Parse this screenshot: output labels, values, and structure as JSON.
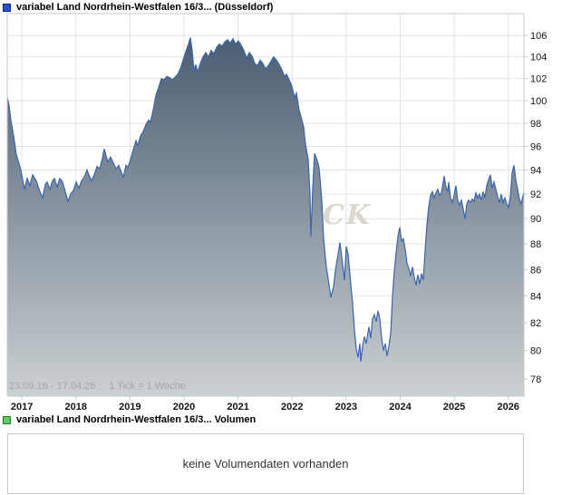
{
  "price_panel": {
    "legend": {
      "label": "variabel Land Nordrhein-Westfalen 16/3... (Düsseldorf)",
      "swatch_color": "#2852c8",
      "swatch_border": "#0a1f96"
    },
    "footer": {
      "date_range": "23.09.16 - 17.04.26",
      "tick_info": "1 Tick = 1 Woche"
    },
    "watermark": "CK"
  },
  "volume_panel": {
    "legend": {
      "label": "variabel Land Nordrhein-Westfalen 16/3... Volumen",
      "swatch_color": "#64c864",
      "swatch_border": "#1e7d1e"
    },
    "message": "keine Volumendaten vorhanden"
  },
  "colors": {
    "grid": "#e3e3e3",
    "plot_border": "#c9c9c9",
    "axis_text": "#141414",
    "muted_text": "#a6a6a6",
    "watermark_color": "#dcd8cd",
    "line": "#3a65ac"
  },
  "chart_data": {
    "type": "area",
    "title": "variabel Land Nordrhein-Westfalen 16/3... (Düsseldorf)",
    "grid": true,
    "legend_position": "top-left",
    "x_axis": {
      "tick_labels": [
        "2017",
        "2018",
        "2019",
        "2020",
        "2021",
        "2022",
        "2023",
        "2024",
        "2025",
        "2026"
      ],
      "tick_years": [
        2017,
        2018,
        2019,
        2020,
        2021,
        2022,
        2023,
        2024,
        2025,
        2026
      ],
      "start_decimal_year": 2016.73,
      "end_decimal_year": 2026.29,
      "start_date": "23.09.16",
      "end_date": "17.04.26",
      "tick_unit": "1 Tick = 1 Woche"
    },
    "y_axis": {
      "scale": "log",
      "side": "right",
      "ticks": [
        78,
        80,
        82,
        84,
        86,
        88,
        90,
        92,
        94,
        96,
        98,
        100,
        102,
        104,
        106
      ],
      "ylim": [
        76.8,
        108.1
      ]
    },
    "series": [
      {
        "name": "variabel Land Nordrhein-Westfalen 16/3... (Düsseldorf)",
        "color": "#3a65ac",
        "fill_gradient": [
          "#42566b",
          "#cbd0d2"
        ],
        "points": [
          [
            0.0,
            100.3
          ],
          [
            0.0035,
            99.6
          ],
          [
            0.007,
            98.3
          ],
          [
            0.0123,
            96.9
          ],
          [
            0.0175,
            95.3
          ],
          [
            0.0211,
            94.8
          ],
          [
            0.0263,
            94.0
          ],
          [
            0.0333,
            92.4
          ],
          [
            0.0386,
            93.3
          ],
          [
            0.0439,
            92.7
          ],
          [
            0.0491,
            93.6
          ],
          [
            0.0561,
            93.1
          ],
          [
            0.0632,
            92.2
          ],
          [
            0.0684,
            91.7
          ],
          [
            0.0737,
            92.8
          ],
          [
            0.0772,
            93.0
          ],
          [
            0.0825,
            92.4
          ],
          [
            0.0877,
            93.1
          ],
          [
            0.0912,
            93.3
          ],
          [
            0.0965,
            92.6
          ],
          [
            0.1018,
            93.3
          ],
          [
            0.107,
            93.0
          ],
          [
            0.1123,
            92.2
          ],
          [
            0.1175,
            91.4
          ],
          [
            0.1228,
            92.0
          ],
          [
            0.1281,
            92.3
          ],
          [
            0.1333,
            93.0
          ],
          [
            0.1386,
            92.5
          ],
          [
            0.1439,
            93.1
          ],
          [
            0.1491,
            93.4
          ],
          [
            0.1544,
            94.0
          ],
          [
            0.1579,
            93.6
          ],
          [
            0.1632,
            93.1
          ],
          [
            0.1684,
            93.6
          ],
          [
            0.1737,
            94.3
          ],
          [
            0.1789,
            94.1
          ],
          [
            0.1842,
            95.0
          ],
          [
            0.1877,
            95.8
          ],
          [
            0.1912,
            95.2
          ],
          [
            0.1947,
            94.7
          ],
          [
            0.2,
            95.1
          ],
          [
            0.2053,
            94.6
          ],
          [
            0.2105,
            94.1
          ],
          [
            0.2158,
            94.4
          ],
          [
            0.2211,
            93.8
          ],
          [
            0.2246,
            93.4
          ],
          [
            0.2298,
            94.4
          ],
          [
            0.2333,
            94.2
          ],
          [
            0.2386,
            94.9
          ],
          [
            0.2439,
            95.7
          ],
          [
            0.2491,
            96.5
          ],
          [
            0.2526,
            96.1
          ],
          [
            0.2579,
            96.9
          ],
          [
            0.2632,
            97.3
          ],
          [
            0.2684,
            97.9
          ],
          [
            0.2737,
            98.3
          ],
          [
            0.2772,
            98.1
          ],
          [
            0.2825,
            99.2
          ],
          [
            0.2877,
            100.5
          ],
          [
            0.293,
            101.2
          ],
          [
            0.2982,
            102.0
          ],
          [
            0.3035,
            101.9
          ],
          [
            0.3088,
            102.2
          ],
          [
            0.314,
            102.1
          ],
          [
            0.3193,
            101.9
          ],
          [
            0.3246,
            102.1
          ],
          [
            0.3298,
            102.4
          ],
          [
            0.3351,
            102.9
          ],
          [
            0.3404,
            103.7
          ],
          [
            0.3456,
            104.5
          ],
          [
            0.3509,
            105.2
          ],
          [
            0.3544,
            105.8
          ],
          [
            0.3579,
            104.6
          ],
          [
            0.3614,
            102.7
          ],
          [
            0.3649,
            103.3
          ],
          [
            0.3684,
            102.6
          ],
          [
            0.3737,
            103.4
          ],
          [
            0.3789,
            104.0
          ],
          [
            0.3842,
            104.4
          ],
          [
            0.3895,
            104.0
          ],
          [
            0.3947,
            104.6
          ],
          [
            0.4,
            104.3
          ],
          [
            0.4053,
            104.9
          ],
          [
            0.4105,
            105.2
          ],
          [
            0.4158,
            105.0
          ],
          [
            0.4211,
            105.4
          ],
          [
            0.4263,
            105.6
          ],
          [
            0.4316,
            105.3
          ],
          [
            0.4368,
            105.7
          ],
          [
            0.4421,
            105.2
          ],
          [
            0.4474,
            105.5
          ],
          [
            0.4526,
            105.1
          ],
          [
            0.4579,
            104.6
          ],
          [
            0.4632,
            103.9
          ],
          [
            0.4684,
            104.4
          ],
          [
            0.4737,
            104.1
          ],
          [
            0.4789,
            103.4
          ],
          [
            0.4842,
            103.2
          ],
          [
            0.4895,
            103.7
          ],
          [
            0.4947,
            103.4
          ],
          [
            0.5,
            102.9
          ],
          [
            0.5053,
            103.2
          ],
          [
            0.5105,
            103.6
          ],
          [
            0.5158,
            104.0
          ],
          [
            0.5211,
            103.7
          ],
          [
            0.5263,
            103.3
          ],
          [
            0.5316,
            102.8
          ],
          [
            0.5368,
            102.2
          ],
          [
            0.5404,
            102.4
          ],
          [
            0.5456,
            101.9
          ],
          [
            0.5509,
            101.3
          ],
          [
            0.5561,
            100.3
          ],
          [
            0.5596,
            100.7
          ],
          [
            0.5649,
            99.2
          ],
          [
            0.5702,
            98.3
          ],
          [
            0.5737,
            97.7
          ],
          [
            0.5772,
            96.2
          ],
          [
            0.5825,
            94.9
          ],
          [
            0.586,
            92.0
          ],
          [
            0.5877,
            88.6
          ],
          [
            0.5912,
            92.5
          ],
          [
            0.5947,
            95.4
          ],
          [
            0.6,
            94.8
          ],
          [
            0.6035,
            94.2
          ],
          [
            0.6088,
            91.5
          ],
          [
            0.6123,
            88.4
          ],
          [
            0.6175,
            86.2
          ],
          [
            0.6211,
            85.3
          ],
          [
            0.6263,
            83.9
          ],
          [
            0.6316,
            84.7
          ],
          [
            0.6351,
            85.9
          ],
          [
            0.6404,
            87.2
          ],
          [
            0.6439,
            88.1
          ],
          [
            0.6474,
            87.0
          ],
          [
            0.6526,
            85.2
          ],
          [
            0.6561,
            87.8
          ],
          [
            0.6596,
            87.2
          ],
          [
            0.6649,
            84.9
          ],
          [
            0.6684,
            83.4
          ],
          [
            0.6719,
            81.5
          ],
          [
            0.6754,
            80.1
          ],
          [
            0.6789,
            79.5
          ],
          [
            0.6825,
            80.5
          ],
          [
            0.6842,
            79.2
          ],
          [
            0.6877,
            80.3
          ],
          [
            0.6912,
            81.0
          ],
          [
            0.6947,
            80.5
          ],
          [
            0.7,
            81.7
          ],
          [
            0.7035,
            80.9
          ],
          [
            0.707,
            82.3
          ],
          [
            0.7105,
            82.6
          ],
          [
            0.714,
            82.1
          ],
          [
            0.7175,
            82.9
          ],
          [
            0.7211,
            82.3
          ],
          [
            0.7246,
            80.9
          ],
          [
            0.7281,
            80.0
          ],
          [
            0.7316,
            80.5
          ],
          [
            0.7351,
            79.6
          ],
          [
            0.7386,
            80.3
          ],
          [
            0.7421,
            81.2
          ],
          [
            0.7456,
            84.0
          ],
          [
            0.7491,
            85.9
          ],
          [
            0.7526,
            87.3
          ],
          [
            0.7561,
            88.6
          ],
          [
            0.7596,
            89.3
          ],
          [
            0.7632,
            88.2
          ],
          [
            0.7667,
            88.4
          ],
          [
            0.7702,
            87.6
          ],
          [
            0.7737,
            86.5
          ],
          [
            0.7772,
            86.1
          ],
          [
            0.7807,
            85.5
          ],
          [
            0.7842,
            86.2
          ],
          [
            0.7877,
            85.4
          ],
          [
            0.7912,
            84.8
          ],
          [
            0.7947,
            85.6
          ],
          [
            0.7982,
            84.9
          ],
          [
            0.8018,
            85.7
          ],
          [
            0.8053,
            85.2
          ],
          [
            0.8088,
            87.5
          ],
          [
            0.8123,
            89.5
          ],
          [
            0.8158,
            91.0
          ],
          [
            0.8193,
            91.9
          ],
          [
            0.8228,
            92.2
          ],
          [
            0.8263,
            91.7
          ],
          [
            0.8298,
            92.1
          ],
          [
            0.8333,
            92.4
          ],
          [
            0.8368,
            91.9
          ],
          [
            0.8404,
            92.1
          ],
          [
            0.8456,
            93.5
          ],
          [
            0.8491,
            92.6
          ],
          [
            0.8526,
            92.2
          ],
          [
            0.8544,
            93.0
          ],
          [
            0.8579,
            91.7
          ],
          [
            0.8614,
            91.3
          ],
          [
            0.8649,
            91.9
          ],
          [
            0.8684,
            92.7
          ],
          [
            0.8719,
            91.5
          ],
          [
            0.8754,
            91.1
          ],
          [
            0.8789,
            91.5
          ],
          [
            0.8825,
            90.8
          ],
          [
            0.886,
            90.0
          ],
          [
            0.8895,
            91.2
          ],
          [
            0.893,
            91.5
          ],
          [
            0.8965,
            91.3
          ],
          [
            0.9,
            91.6
          ],
          [
            0.9035,
            91.4
          ],
          [
            0.907,
            92.1
          ],
          [
            0.9105,
            91.7
          ],
          [
            0.914,
            92.0
          ],
          [
            0.9175,
            91.5
          ],
          [
            0.9211,
            92.2
          ],
          [
            0.9246,
            91.7
          ],
          [
            0.9281,
            92.7
          ],
          [
            0.9316,
            93.2
          ],
          [
            0.9351,
            93.6
          ],
          [
            0.9386,
            92.5
          ],
          [
            0.9421,
            93.0
          ],
          [
            0.9456,
            92.4
          ],
          [
            0.9491,
            91.8
          ],
          [
            0.9526,
            91.3
          ],
          [
            0.9561,
            92.0
          ],
          [
            0.9596,
            91.3
          ],
          [
            0.9632,
            91.7
          ],
          [
            0.9667,
            91.2
          ],
          [
            0.9702,
            90.9
          ],
          [
            0.9737,
            91.8
          ],
          [
            0.9772,
            93.8
          ],
          [
            0.9807,
            94.4
          ],
          [
            0.9842,
            93.2
          ],
          [
            0.9877,
            92.4
          ],
          [
            0.9912,
            91.6
          ],
          [
            0.9947,
            91.2
          ],
          [
            1.0,
            92.2
          ]
        ]
      }
    ],
    "volume": {
      "name": "variabel Land Nordrhein-Westfalen 16/3... Volumen",
      "values": [],
      "message": "keine Volumendaten vorhanden"
    }
  }
}
